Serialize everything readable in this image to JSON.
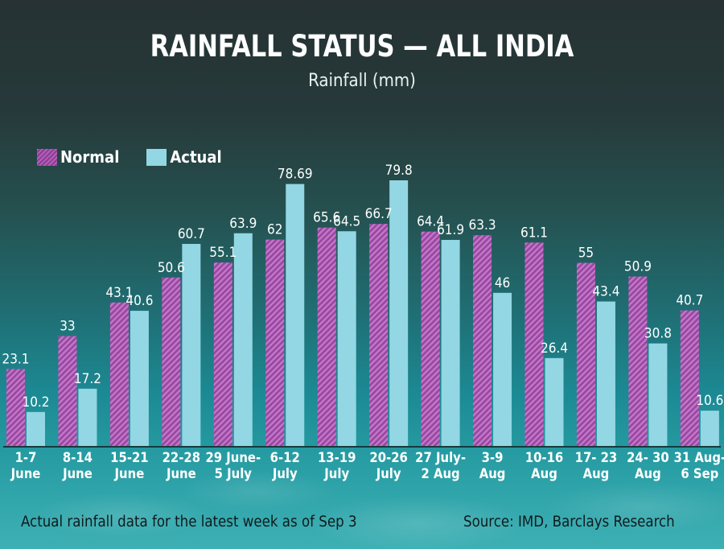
{
  "title": "RAINFALL STATUS — ALL INDIA",
  "subtitle": "Rainfall (mm)",
  "footnote": "Actual rainfall data for the latest week as of Sep 3",
  "source": "Source: IMD, Barclays Research",
  "colors": {
    "normal": "#a24fa8",
    "normal_stripe": "#c67ccb",
    "actual": "#92d7e3",
    "text": "#ffffff"
  },
  "chart_data": {
    "type": "bar",
    "title": "RAINFALL STATUS — ALL INDIA",
    "ylabel": "Rainfall (mm)",
    "xlabel": "",
    "ylim": [
      0,
      80
    ],
    "grid": false,
    "legend_position": "top-left",
    "categories": [
      [
        "1-7",
        "June"
      ],
      [
        "8-14",
        "June"
      ],
      [
        "15-21",
        "June"
      ],
      [
        "22-28",
        "June"
      ],
      [
        "29 June-",
        "5 July"
      ],
      [
        "6-12",
        "July"
      ],
      [
        "13-19",
        "July"
      ],
      [
        "20-26",
        "July"
      ],
      [
        "27 July-",
        "2 Aug"
      ],
      [
        "3-9",
        "Aug"
      ],
      [
        "10-16",
        "Aug"
      ],
      [
        "17- 23",
        "Aug"
      ],
      [
        "24- 30",
        "Aug"
      ],
      [
        "31 Aug-",
        "6 Sep"
      ]
    ],
    "series": [
      {
        "name": "Normal",
        "values": [
          23.1,
          33,
          43.1,
          50.6,
          55.1,
          62,
          65.6,
          66.7,
          64.4,
          63.3,
          61.1,
          55,
          50.9,
          40.7
        ],
        "labels": [
          "23.1",
          "33",
          "43.1",
          "50.6",
          "55.1",
          "62",
          "65.6",
          "66.7",
          "64.4",
          "63.3",
          "61.1",
          "55",
          "50.9",
          "40.7"
        ]
      },
      {
        "name": "Actual",
        "values": [
          10.2,
          17.2,
          40.6,
          60.7,
          63.9,
          78.69,
          64.5,
          79.8,
          61.9,
          46,
          26.4,
          43.4,
          30.8,
          10.6
        ],
        "labels": [
          "10.2",
          "17.2",
          "40.6",
          "60.7",
          "63.9",
          "78.69",
          "64.5",
          "79.8",
          "61.9",
          "46",
          "26.4",
          "43.4",
          "30.8",
          "10.6"
        ]
      }
    ]
  }
}
